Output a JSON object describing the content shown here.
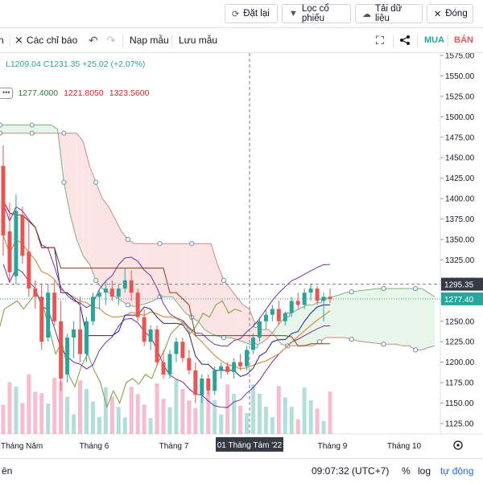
{
  "topbar": {
    "reset_label": "Đặt lại",
    "filter_label": "Lọc cổ phiếu",
    "download_label": "Tải dữ liệu",
    "close_label": "Đóng"
  },
  "toolbar": {
    "indicators_label": "Các chỉ báo",
    "load_template_label": "Nạp mẫu",
    "save_template_label": "Lưu mẫu",
    "buy_label": "MUA",
    "sell_label": "BÁN"
  },
  "legend": {
    "ohlc_text": "L1209.04  C1231.35  +25.02 (+2.07%)",
    "values": [
      "1277.4000",
      "1221.8050",
      "1323.5600"
    ]
  },
  "bottombar": {
    "range_text": "ên",
    "clock": "09:07:32 (UTC+7)",
    "percent_label": "%",
    "log_label": "log",
    "auto_label": "tự động"
  },
  "crosshair_date_label": "01 Tháng Tám '22",
  "price_tags": {
    "crosshair": "1295.35",
    "last": "1277.40"
  },
  "colors": {
    "up": "#26a69a",
    "down": "#ef5350",
    "vol_up": "#b2dfdb",
    "vol_down": "#f8bbd0",
    "cloud_bull": "#e8f5e9",
    "cloud_bear": "#fde4e4",
    "tenkan": "#1e1e8c",
    "kijun": "#8a3b12",
    "span_a": "#2e7d32",
    "span_b": "#c62828",
    "chikou": "#7a9a3a",
    "bb": "#6a1b9a",
    "ma": "#d4883a"
  },
  "chart_data": {
    "type": "candlestick",
    "y_ticks": [
      1575,
      1550,
      1525,
      1500,
      1475,
      1450,
      1425,
      1400,
      1375,
      1350,
      1325,
      1300,
      1275,
      1250,
      1225,
      1200,
      1175,
      1150,
      1125
    ],
    "ylim": [
      1103,
      1583
    ],
    "x_tick_labels": [
      "Tháng Năm",
      "Tháng 6",
      "Tháng 7",
      "Tháng 8",
      "Tháng 9",
      "Tháng 10"
    ],
    "crosshair_price": 1295.35,
    "last_price": 1277.4,
    "candles": [
      {
        "o": 1440,
        "h": 1465,
        "l": 1330,
        "c": 1355
      },
      {
        "o": 1360,
        "h": 1395,
        "l": 1300,
        "c": 1310
      },
      {
        "o": 1305,
        "h": 1405,
        "l": 1295,
        "c": 1385
      },
      {
        "o": 1380,
        "h": 1390,
        "l": 1320,
        "c": 1330
      },
      {
        "o": 1335,
        "h": 1375,
        "l": 1280,
        "c": 1290
      },
      {
        "o": 1290,
        "h": 1300,
        "l": 1265,
        "c": 1280
      },
      {
        "o": 1280,
        "h": 1295,
        "l": 1215,
        "c": 1225
      },
      {
        "o": 1230,
        "h": 1295,
        "l": 1225,
        "c": 1285
      },
      {
        "o": 1285,
        "h": 1300,
        "l": 1245,
        "c": 1250
      },
      {
        "o": 1250,
        "h": 1275,
        "l": 1165,
        "c": 1180
      },
      {
        "o": 1185,
        "h": 1235,
        "l": 1175,
        "c": 1230
      },
      {
        "o": 1230,
        "h": 1250,
        "l": 1205,
        "c": 1240
      },
      {
        "o": 1240,
        "h": 1280,
        "l": 1200,
        "c": 1210
      },
      {
        "o": 1210,
        "h": 1255,
        "l": 1200,
        "c": 1250
      },
      {
        "o": 1250,
        "h": 1285,
        "l": 1245,
        "c": 1280
      },
      {
        "o": 1280,
        "h": 1290,
        "l": 1265,
        "c": 1285
      },
      {
        "o": 1285,
        "h": 1300,
        "l": 1270,
        "c": 1290
      },
      {
        "o": 1290,
        "h": 1300,
        "l": 1275,
        "c": 1280
      },
      {
        "o": 1280,
        "h": 1295,
        "l": 1270,
        "c": 1290
      },
      {
        "o": 1290,
        "h": 1315,
        "l": 1285,
        "c": 1300
      },
      {
        "o": 1300,
        "h": 1312,
        "l": 1275,
        "c": 1285
      },
      {
        "o": 1285,
        "h": 1290,
        "l": 1250,
        "c": 1255
      },
      {
        "o": 1255,
        "h": 1265,
        "l": 1220,
        "c": 1225
      },
      {
        "o": 1225,
        "h": 1245,
        "l": 1215,
        "c": 1240
      },
      {
        "o": 1240,
        "h": 1245,
        "l": 1195,
        "c": 1200
      },
      {
        "o": 1200,
        "h": 1215,
        "l": 1180,
        "c": 1185
      },
      {
        "o": 1185,
        "h": 1215,
        "l": 1180,
        "c": 1210
      },
      {
        "o": 1210,
        "h": 1230,
        "l": 1200,
        "c": 1225
      },
      {
        "o": 1225,
        "h": 1230,
        "l": 1200,
        "c": 1205
      },
      {
        "o": 1205,
        "h": 1215,
        "l": 1185,
        "c": 1190
      },
      {
        "o": 1190,
        "h": 1200,
        "l": 1150,
        "c": 1160
      },
      {
        "o": 1160,
        "h": 1185,
        "l": 1150,
        "c": 1180
      },
      {
        "o": 1180,
        "h": 1185,
        "l": 1160,
        "c": 1165
      },
      {
        "o": 1165,
        "h": 1195,
        "l": 1160,
        "c": 1190
      },
      {
        "o": 1190,
        "h": 1200,
        "l": 1180,
        "c": 1195
      },
      {
        "o": 1195,
        "h": 1200,
        "l": 1185,
        "c": 1188
      },
      {
        "o": 1188,
        "h": 1205,
        "l": 1180,
        "c": 1200
      },
      {
        "o": 1200,
        "h": 1210,
        "l": 1190,
        "c": 1195
      },
      {
        "o": 1195,
        "h": 1220,
        "l": 1190,
        "c": 1215
      },
      {
        "o": 1215,
        "h": 1235,
        "l": 1210,
        "c": 1230
      },
      {
        "o": 1230,
        "h": 1255,
        "l": 1225,
        "c": 1250
      },
      {
        "o": 1250,
        "h": 1265,
        "l": 1240,
        "c": 1258
      },
      {
        "o": 1258,
        "h": 1270,
        "l": 1250,
        "c": 1265
      },
      {
        "o": 1265,
        "h": 1275,
        "l": 1245,
        "c": 1250
      },
      {
        "o": 1250,
        "h": 1262,
        "l": 1245,
        "c": 1260
      },
      {
        "o": 1260,
        "h": 1280,
        "l": 1255,
        "c": 1275
      },
      {
        "o": 1275,
        "h": 1285,
        "l": 1265,
        "c": 1270
      },
      {
        "o": 1270,
        "h": 1290,
        "l": 1265,
        "c": 1285
      },
      {
        "o": 1285,
        "h": 1295,
        "l": 1275,
        "c": 1290
      },
      {
        "o": 1290,
        "h": 1293,
        "l": 1270,
        "c": 1275
      },
      {
        "o": 1275,
        "h": 1285,
        "l": 1250,
        "c": 1280
      },
      {
        "o": 1280,
        "h": 1290,
        "l": 1272,
        "c": 1277
      }
    ]
  }
}
